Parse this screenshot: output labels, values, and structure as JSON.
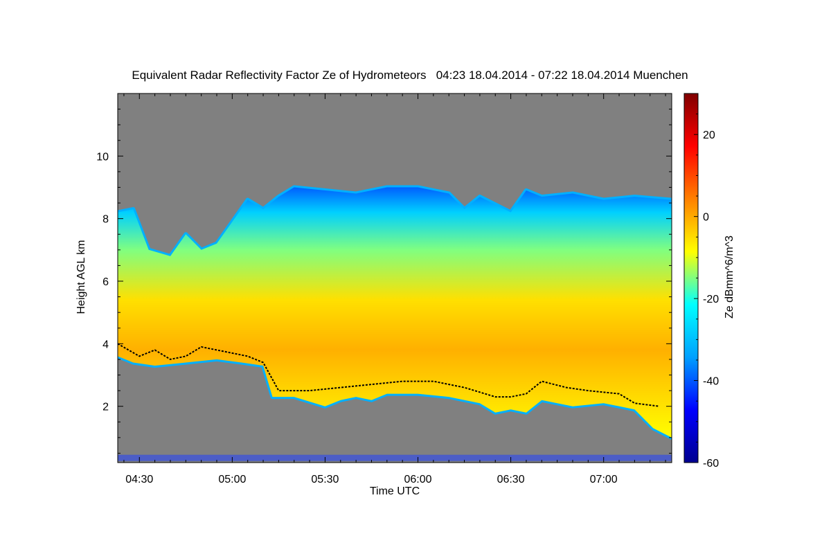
{
  "chart_data": {
    "type": "heatmap",
    "title": "Equivalent Radar Reflectivity Factor Ze of Hydrometeors   04:23 18.04.2014 - 07:22 18.04.2014 Muenchen",
    "xlabel": "Time UTC",
    "ylabel": "Height AGL km",
    "colorbar_label": "Ze dBmm^6/m^3",
    "x_range_minutes": [
      23,
      202
    ],
    "y_range_km": [
      0.2,
      12.0
    ],
    "z_range_dbz": [
      -60,
      30
    ],
    "x_ticks": [
      {
        "minute": 30,
        "label": "04:30"
      },
      {
        "minute": 60,
        "label": "05:00"
      },
      {
        "minute": 90,
        "label": "05:30"
      },
      {
        "minute": 120,
        "label": "06:00"
      },
      {
        "minute": 150,
        "label": "06:30"
      },
      {
        "minute": 180,
        "label": "07:00"
      }
    ],
    "y_ticks": [
      {
        "value": 2,
        "label": "2"
      },
      {
        "value": 4,
        "label": "4"
      },
      {
        "value": 6,
        "label": "6"
      },
      {
        "value": 8,
        "label": "8"
      },
      {
        "value": 10,
        "label": "10"
      }
    ],
    "colorbar_ticks": [
      {
        "value": 20,
        "label": "20"
      },
      {
        "value": 0,
        "label": "0"
      },
      {
        "value": -20,
        "label": "-20"
      },
      {
        "value": -40,
        "label": "-40"
      },
      {
        "value": -60,
        "label": "-60"
      }
    ],
    "background_color": "#808080",
    "colormap": [
      "#00008f",
      "#0000ff",
      "#00a0ff",
      "#00ffff",
      "#ffff00",
      "#ff8000",
      "#ff0000",
      "#800000"
    ],
    "cloud_top_km": [
      {
        "minute": 23,
        "km": 8.2
      },
      {
        "minute": 28,
        "km": 8.3
      },
      {
        "minute": 33,
        "km": 7.0
      },
      {
        "minute": 40,
        "km": 6.8
      },
      {
        "minute": 45,
        "km": 7.5
      },
      {
        "minute": 50,
        "km": 7.0
      },
      {
        "minute": 55,
        "km": 7.2
      },
      {
        "minute": 60,
        "km": 7.9
      },
      {
        "minute": 65,
        "km": 8.6
      },
      {
        "minute": 70,
        "km": 8.3
      },
      {
        "minute": 75,
        "km": 8.7
      },
      {
        "minute": 80,
        "km": 9.0
      },
      {
        "minute": 90,
        "km": 8.9
      },
      {
        "minute": 100,
        "km": 8.8
      },
      {
        "minute": 110,
        "km": 9.0
      },
      {
        "minute": 120,
        "km": 9.0
      },
      {
        "minute": 130,
        "km": 8.8
      },
      {
        "minute": 135,
        "km": 8.3
      },
      {
        "minute": 140,
        "km": 8.7
      },
      {
        "minute": 150,
        "km": 8.2
      },
      {
        "minute": 155,
        "km": 8.9
      },
      {
        "minute": 160,
        "km": 8.7
      },
      {
        "minute": 170,
        "km": 8.8
      },
      {
        "minute": 180,
        "km": 8.6
      },
      {
        "minute": 190,
        "km": 8.7
      },
      {
        "minute": 202,
        "km": 8.6
      }
    ],
    "cloud_base_km": [
      {
        "minute": 23,
        "km": 3.6
      },
      {
        "minute": 28,
        "km": 3.4
      },
      {
        "minute": 35,
        "km": 3.3
      },
      {
        "minute": 45,
        "km": 3.4
      },
      {
        "minute": 55,
        "km": 3.5
      },
      {
        "minute": 63,
        "km": 3.4
      },
      {
        "minute": 70,
        "km": 3.3
      },
      {
        "minute": 73,
        "km": 2.3
      },
      {
        "minute": 80,
        "km": 2.3
      },
      {
        "minute": 90,
        "km": 2.0
      },
      {
        "minute": 95,
        "km": 2.2
      },
      {
        "minute": 100,
        "km": 2.3
      },
      {
        "minute": 105,
        "km": 2.2
      },
      {
        "minute": 110,
        "km": 2.4
      },
      {
        "minute": 120,
        "km": 2.4
      },
      {
        "minute": 130,
        "km": 2.3
      },
      {
        "minute": 140,
        "km": 2.1
      },
      {
        "minute": 145,
        "km": 1.8
      },
      {
        "minute": 150,
        "km": 1.9
      },
      {
        "minute": 155,
        "km": 1.8
      },
      {
        "minute": 160,
        "km": 2.2
      },
      {
        "minute": 165,
        "km": 2.1
      },
      {
        "minute": 170,
        "km": 2.0
      },
      {
        "minute": 180,
        "km": 2.1
      },
      {
        "minute": 190,
        "km": 1.9
      },
      {
        "minute": 196,
        "km": 1.3
      },
      {
        "minute": 202,
        "km": 1.0
      }
    ],
    "melting_layer_km": [
      {
        "minute": 23,
        "km": 4.0
      },
      {
        "minute": 30,
        "km": 3.6
      },
      {
        "minute": 35,
        "km": 3.8
      },
      {
        "minute": 40,
        "km": 3.5
      },
      {
        "minute": 45,
        "km": 3.6
      },
      {
        "minute": 50,
        "km": 3.9
      },
      {
        "minute": 55,
        "km": 3.8
      },
      {
        "minute": 60,
        "km": 3.7
      },
      {
        "minute": 65,
        "km": 3.6
      },
      {
        "minute": 70,
        "km": 3.4
      },
      {
        "minute": 75,
        "km": 2.5
      },
      {
        "minute": 85,
        "km": 2.5
      },
      {
        "minute": 95,
        "km": 2.6
      },
      {
        "minute": 105,
        "km": 2.7
      },
      {
        "minute": 115,
        "km": 2.8
      },
      {
        "minute": 125,
        "km": 2.8
      },
      {
        "minute": 135,
        "km": 2.6
      },
      {
        "minute": 145,
        "km": 2.3
      },
      {
        "minute": 150,
        "km": 2.3
      },
      {
        "minute": 155,
        "km": 2.4
      },
      {
        "minute": 160,
        "km": 2.8
      },
      {
        "minute": 168,
        "km": 2.6
      },
      {
        "minute": 175,
        "km": 2.5
      },
      {
        "minute": 185,
        "km": 2.4
      },
      {
        "minute": 190,
        "km": 2.1
      },
      {
        "minute": 198,
        "km": 2.0
      }
    ]
  }
}
